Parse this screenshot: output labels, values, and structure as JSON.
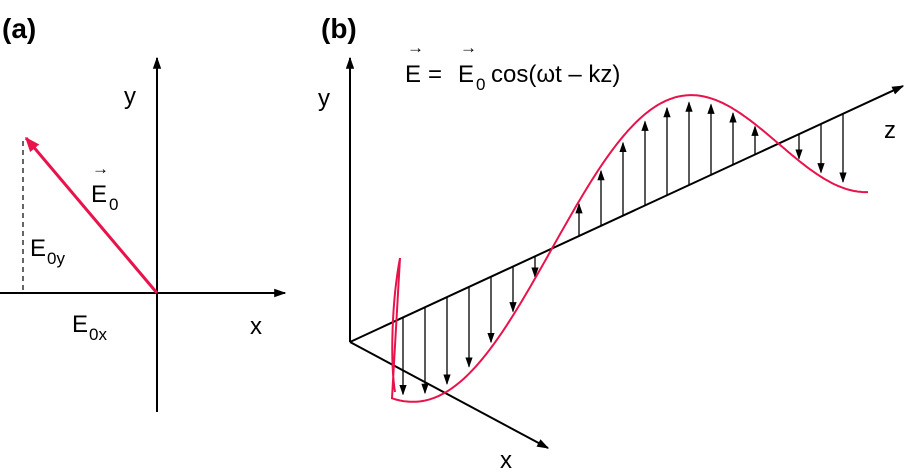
{
  "panel_a": {
    "label": "(a)",
    "axis_x": "x",
    "axis_y": "y",
    "vector_arrow": "→",
    "vector_main": "E",
    "vector_sub": "0",
    "comp_x_main": "E",
    "comp_x_sub": "0x",
    "comp_y_main": "E",
    "comp_y_sub": "0y"
  },
  "panel_b": {
    "label": "(b)",
    "axis_x": "x",
    "axis_y": "y",
    "axis_z": "z",
    "eq_arrow": "→",
    "eq_lhs": "E",
    "eq_equals": "=",
    "eq_rhs_main": "E",
    "eq_rhs_sub": "0",
    "eq_rest": "cos(ωt – kz)"
  },
  "colors": {
    "vector": "#e8134b",
    "axes": "#000000"
  }
}
